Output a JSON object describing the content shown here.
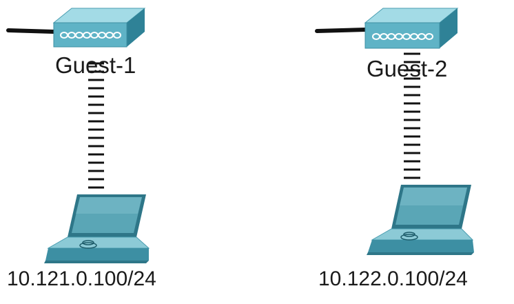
{
  "diagram": {
    "devices": [
      {
        "label": "Guest-1",
        "ip": "10.121.0.100/24",
        "ap_icon": "wireless-access-point-icon",
        "client_icon": "laptop-icon"
      },
      {
        "label": "Guest-2",
        "ip": "10.122.0.100/24",
        "ap_icon": "wireless-access-point-icon",
        "client_icon": "laptop-icon"
      }
    ],
    "link_icon": "wireless-link-icon",
    "colors": {
      "device_face": "#5fb3c6",
      "device_top": "#a3dbe6",
      "device_side": "#2f8297",
      "laptop_screen": "#5aa6b6",
      "laptop_bezel": "#2e7688",
      "laptop_base": "#8ccad6",
      "cable": "#111111",
      "link": "#111111"
    }
  }
}
